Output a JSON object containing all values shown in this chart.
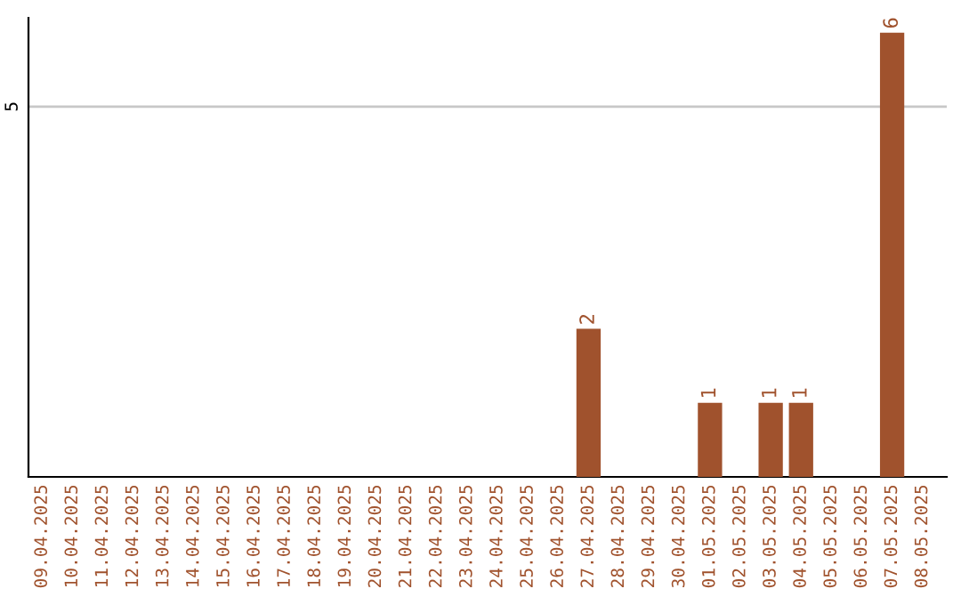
{
  "chart_data": {
    "type": "bar",
    "categories": [
      "09.04.2025",
      "10.04.2025",
      "11.04.2025",
      "12.04.2025",
      "13.04.2025",
      "14.04.2025",
      "15.04.2025",
      "16.04.2025",
      "17.04.2025",
      "18.04.2025",
      "19.04.2025",
      "20.04.2025",
      "21.04.2025",
      "22.04.2025",
      "23.04.2025",
      "24.04.2025",
      "25.04.2025",
      "26.04.2025",
      "27.04.2025",
      "28.04.2025",
      "29.04.2025",
      "30.04.2025",
      "01.05.2025",
      "02.05.2025",
      "03.05.2025",
      "04.05.2025",
      "05.05.2025",
      "06.05.2025",
      "07.05.2025",
      "08.05.2025"
    ],
    "values": [
      null,
      null,
      null,
      null,
      null,
      null,
      null,
      null,
      null,
      null,
      null,
      null,
      null,
      null,
      null,
      null,
      null,
      null,
      2,
      null,
      null,
      null,
      1,
      null,
      1,
      1,
      null,
      null,
      6,
      null
    ],
    "data_labels": true,
    "color": "#a0522d",
    "ylim": [
      0,
      6.2
    ],
    "yticks": [
      5
    ],
    "grid": "y"
  }
}
